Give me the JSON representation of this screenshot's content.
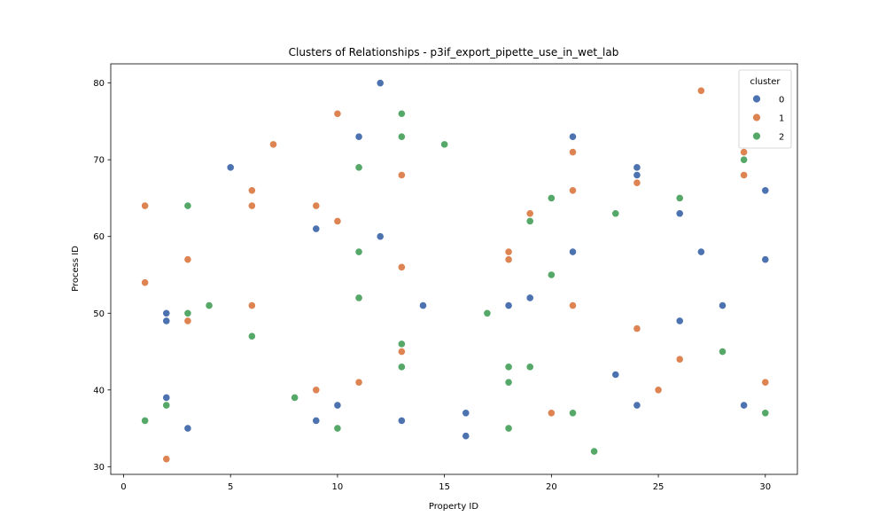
{
  "chart_data": {
    "type": "scatter",
    "title": "Clusters of Relationships - p3if_export_pipette_use_in_wet_lab",
    "xlabel": "Property ID",
    "ylabel": "Process ID",
    "xlim": [
      -0.6,
      31.5
    ],
    "ylim": [
      29,
      82.5
    ],
    "xticks": [
      0,
      5,
      10,
      15,
      20,
      25,
      30
    ],
    "yticks": [
      30,
      40,
      50,
      60,
      70,
      80
    ],
    "grid": false,
    "legend": {
      "title": "cluster",
      "position": "top-right"
    },
    "series": [
      {
        "name": "0",
        "color": "#4c72b0",
        "points": [
          [
            2,
            50
          ],
          [
            2,
            49
          ],
          [
            2,
            39
          ],
          [
            3,
            35
          ],
          [
            5,
            69
          ],
          [
            9,
            61
          ],
          [
            9,
            36
          ],
          [
            10,
            38
          ],
          [
            11,
            73
          ],
          [
            12,
            80
          ],
          [
            12,
            60
          ],
          [
            13,
            36
          ],
          [
            14,
            51
          ],
          [
            16,
            37
          ],
          [
            16,
            34
          ],
          [
            18,
            51
          ],
          [
            19,
            52
          ],
          [
            21,
            73
          ],
          [
            21,
            58
          ],
          [
            23,
            42
          ],
          [
            24,
            69
          ],
          [
            24,
            68
          ],
          [
            24,
            38
          ],
          [
            26,
            63
          ],
          [
            26,
            49
          ],
          [
            27,
            58
          ],
          [
            28,
            51
          ],
          [
            29,
            38
          ],
          [
            30,
            66
          ],
          [
            30,
            57
          ]
        ]
      },
      {
        "name": "1",
        "color": "#dd8452",
        "points": [
          [
            1,
            64
          ],
          [
            1,
            54
          ],
          [
            2,
            31
          ],
          [
            3,
            57
          ],
          [
            3,
            49
          ],
          [
            6,
            66
          ],
          [
            6,
            64
          ],
          [
            6,
            51
          ],
          [
            7,
            72
          ],
          [
            9,
            64
          ],
          [
            9,
            40
          ],
          [
            10,
            76
          ],
          [
            10,
            62
          ],
          [
            11,
            41
          ],
          [
            13,
            68
          ],
          [
            13,
            56
          ],
          [
            13,
            45
          ],
          [
            18,
            58
          ],
          [
            18,
            57
          ],
          [
            19,
            63
          ],
          [
            20,
            37
          ],
          [
            21,
            71
          ],
          [
            21,
            66
          ],
          [
            21,
            51
          ],
          [
            24,
            67
          ],
          [
            24,
            48
          ],
          [
            25,
            40
          ],
          [
            26,
            44
          ],
          [
            27,
            79
          ],
          [
            29,
            71
          ],
          [
            29,
            68
          ],
          [
            30,
            41
          ]
        ]
      },
      {
        "name": "2",
        "color": "#55a868",
        "points": [
          [
            1,
            36
          ],
          [
            2,
            38
          ],
          [
            3,
            64
          ],
          [
            3,
            50
          ],
          [
            4,
            51
          ],
          [
            6,
            47
          ],
          [
            8,
            39
          ],
          [
            10,
            35
          ],
          [
            11,
            69
          ],
          [
            11,
            58
          ],
          [
            11,
            52
          ],
          [
            13,
            76
          ],
          [
            13,
            73
          ],
          [
            13,
            46
          ],
          [
            13,
            43
          ],
          [
            15,
            72
          ],
          [
            17,
            50
          ],
          [
            18,
            43
          ],
          [
            18,
            41
          ],
          [
            18,
            35
          ],
          [
            19,
            62
          ],
          [
            19,
            43
          ],
          [
            20,
            65
          ],
          [
            20,
            55
          ],
          [
            21,
            37
          ],
          [
            22,
            32
          ],
          [
            23,
            63
          ],
          [
            26,
            65
          ],
          [
            28,
            45
          ],
          [
            29,
            70
          ],
          [
            30,
            37
          ]
        ]
      }
    ]
  }
}
